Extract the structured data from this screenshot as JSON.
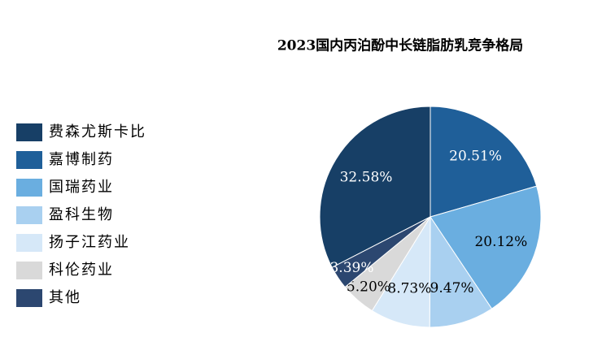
{
  "chart_data": {
    "type": "pie",
    "title": "2023国内丙泊酚中长链脂肪乳竞争格局",
    "categories": [
      "费森尤斯卡比",
      "嘉博制药",
      "国瑞药业",
      "盈科生物",
      "扬子江药业",
      "科伦药业",
      "其他"
    ],
    "values": [
      32.58,
      20.51,
      20.12,
      9.47,
      8.73,
      5.2,
      3.39
    ],
    "value_labels": [
      "32.58%",
      "20.51%",
      "20.12%",
      "9.47%",
      "8.73%",
      "5.20%",
      "3.39%"
    ],
    "colors": [
      "#173f66",
      "#1f5f99",
      "#6aaee0",
      "#a9d0f0",
      "#d6e8f8",
      "#d9d9d9",
      "#2c4770"
    ]
  }
}
